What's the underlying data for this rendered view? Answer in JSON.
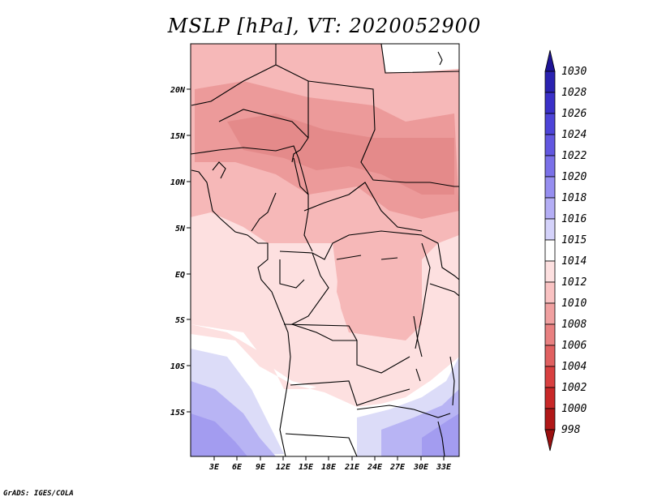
{
  "title": "MSLP [hPa], VT: 2020052900",
  "credit": "GrADS: IGES/COLA",
  "map": {
    "lat_labels": [
      "20N",
      "15N",
      "10N",
      "5N",
      "EQ",
      "5S",
      "10S",
      "15S"
    ],
    "lon_labels": [
      "3E",
      "6E",
      "9E",
      "12E",
      "15E",
      "18E",
      "21E",
      "24E",
      "27E",
      "30E",
      "33E"
    ]
  },
  "colorbar": {
    "levels": [
      "1030",
      "1028",
      "1026",
      "1024",
      "1022",
      "1020",
      "1018",
      "1016",
      "1015",
      "1014",
      "1012",
      "1010",
      "1008",
      "1006",
      "1004",
      "1002",
      "1000",
      "998"
    ],
    "colors": [
      "#1e1496",
      "#2a22b0",
      "#3a30c8",
      "#4d44d8",
      "#6257e0",
      "#7a70e8",
      "#968ef0",
      "#b4aef5",
      "#d4d2fa",
      "#ffffff",
      "#fde0e0",
      "#f9c2c2",
      "#f0a0a0",
      "#e88080",
      "#e06060",
      "#d84040",
      "#c82828",
      "#b01818",
      "#9a1010"
    ]
  }
}
